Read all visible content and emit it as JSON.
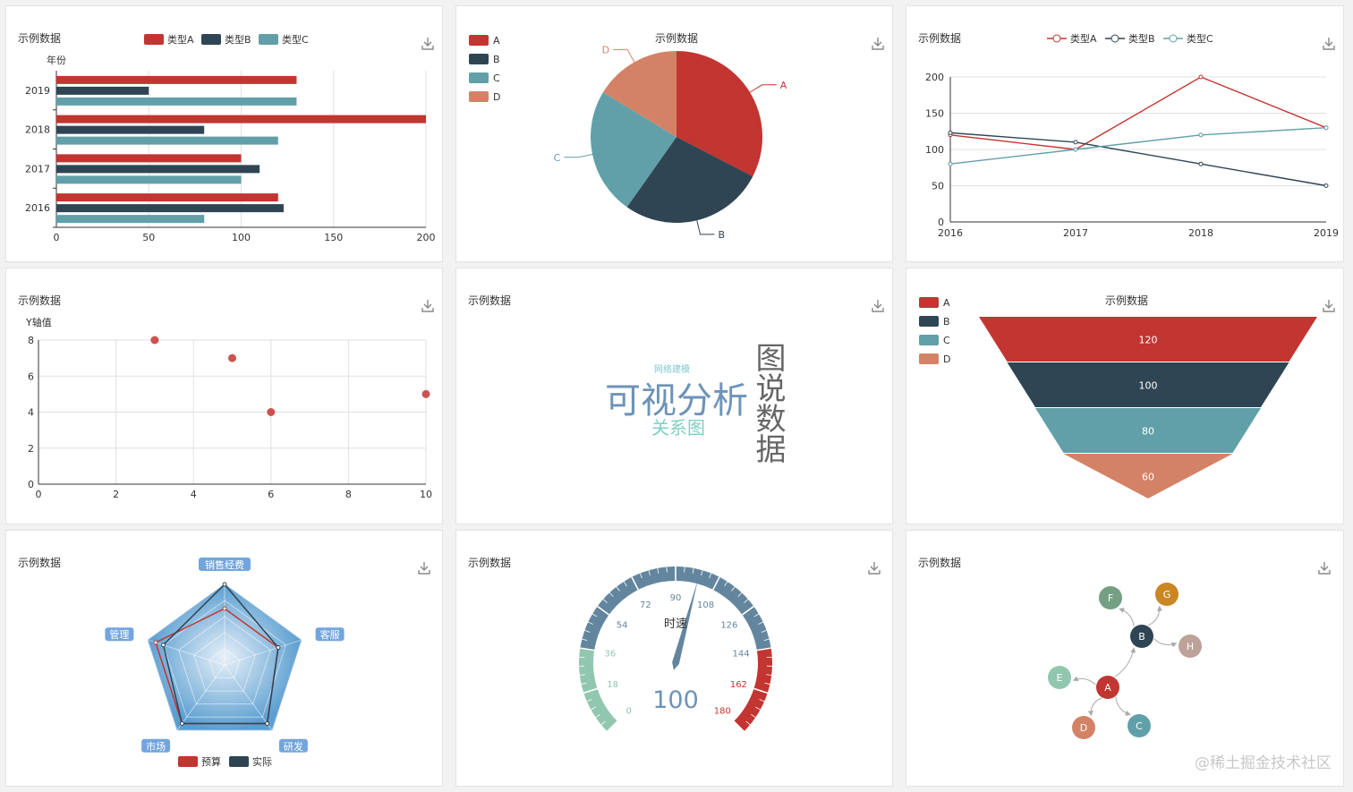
{
  "colors": {
    "a": "#c23531",
    "b": "#2f4554",
    "c": "#61a0a8",
    "d": "#d48265",
    "grid": "#e0e0e0",
    "axis": "#333333",
    "text": "#333333"
  },
  "bar_panel": {
    "title": "示例数据",
    "yname": "年份",
    "legend": [
      "类型A",
      "类型B",
      "类型C"
    ]
  },
  "pie_panel": {
    "title": "示例数据",
    "legend": [
      "A",
      "B",
      "C",
      "D"
    ]
  },
  "line_panel": {
    "title": "示例数据",
    "legend": [
      "类型A",
      "类型B",
      "类型C"
    ]
  },
  "scatter_panel": {
    "title": "示例数据",
    "yname": "Y轴值"
  },
  "cloud_panel": {
    "title": "示例数据",
    "words": [
      "网络建模",
      "可视分析",
      "关系图",
      "图说数据"
    ]
  },
  "funnel_panel": {
    "title": "示例数据",
    "legend": [
      "A",
      "B",
      "C",
      "D"
    ]
  },
  "radar_panel": {
    "title": "示例数据",
    "legend": [
      "预算",
      "实际"
    ]
  },
  "gauge_panel": {
    "title": "示例数据",
    "name": "时速",
    "value_text": "100"
  },
  "graph_panel": {
    "title": "示例数据"
  },
  "watermark": "@稀土掘金技术社区",
  "chart_data": [
    {
      "type": "bar",
      "orientation": "horizontal",
      "title": "示例数据",
      "categories": [
        "2016",
        "2017",
        "2018",
        "2019"
      ],
      "series": [
        {
          "name": "类型A",
          "values": [
            120,
            100,
            200,
            130
          ]
        },
        {
          "name": "类型B",
          "values": [
            123,
            110,
            80,
            50
          ]
        },
        {
          "name": "类型C",
          "values": [
            80,
            100,
            120,
            130
          ]
        }
      ],
      "xlim": [
        0,
        200
      ],
      "xticks": [
        0,
        50,
        100,
        150,
        200
      ],
      "ylabel": "年份"
    },
    {
      "type": "pie",
      "title": "示例数据",
      "labels": [
        "A",
        "B",
        "C",
        "D"
      ],
      "values": [
        30,
        25,
        22,
        15
      ]
    },
    {
      "type": "line",
      "title": "示例数据",
      "x": [
        "2016",
        "2017",
        "2018",
        "2019"
      ],
      "series": [
        {
          "name": "类型A",
          "values": [
            120,
            100,
            200,
            130
          ]
        },
        {
          "name": "类型B",
          "values": [
            123,
            110,
            80,
            50
          ]
        },
        {
          "name": "类型C",
          "values": [
            80,
            100,
            120,
            130
          ]
        }
      ],
      "ylim": [
        0,
        200
      ],
      "yticks": [
        0,
        50,
        100,
        150,
        200
      ]
    },
    {
      "type": "scatter",
      "title": "示例数据",
      "points": [
        [
          3,
          8
        ],
        [
          5,
          7
        ],
        [
          6,
          4
        ],
        [
          10,
          5
        ]
      ],
      "xlim": [
        0,
        10
      ],
      "ylim": [
        0,
        8
      ],
      "xticks": [
        0,
        2,
        4,
        6,
        8,
        10
      ],
      "yticks": [
        0,
        2,
        4,
        6,
        8
      ],
      "ylabel": "Y轴值"
    },
    {
      "type": "wordcloud",
      "title": "示例数据",
      "words": [
        "网络建模",
        "可视分析",
        "关系图",
        "图说数据"
      ]
    },
    {
      "type": "funnel",
      "title": "示例数据",
      "labels": [
        "A",
        "B",
        "C",
        "D"
      ],
      "values": [
        120,
        100,
        80,
        60
      ]
    },
    {
      "type": "radar",
      "title": "示例数据",
      "indicators": [
        "销售经费",
        "客服",
        "研发",
        "市场",
        "管理"
      ],
      "max": 100,
      "series": [
        {
          "name": "预算",
          "values": [
            70,
            70,
            90,
            90,
            90
          ]
        },
        {
          "name": "实际",
          "values": [
            100,
            70,
            90,
            90,
            80
          ]
        }
      ]
    },
    {
      "type": "gauge",
      "title": "示例数据",
      "name": "时速",
      "min": 0,
      "max": 180,
      "value": 100,
      "ticks": [
        0,
        18,
        36,
        54,
        72,
        90,
        108,
        126,
        144,
        162,
        180
      ]
    },
    {
      "type": "graph",
      "title": "示例数据",
      "nodes": [
        "A",
        "B",
        "C",
        "D",
        "E",
        "F",
        "G",
        "H"
      ],
      "edges": [
        [
          "A",
          "B"
        ],
        [
          "A",
          "C"
        ],
        [
          "A",
          "D"
        ],
        [
          "A",
          "E"
        ],
        [
          "B",
          "F"
        ],
        [
          "B",
          "G"
        ],
        [
          "B",
          "H"
        ]
      ]
    }
  ]
}
